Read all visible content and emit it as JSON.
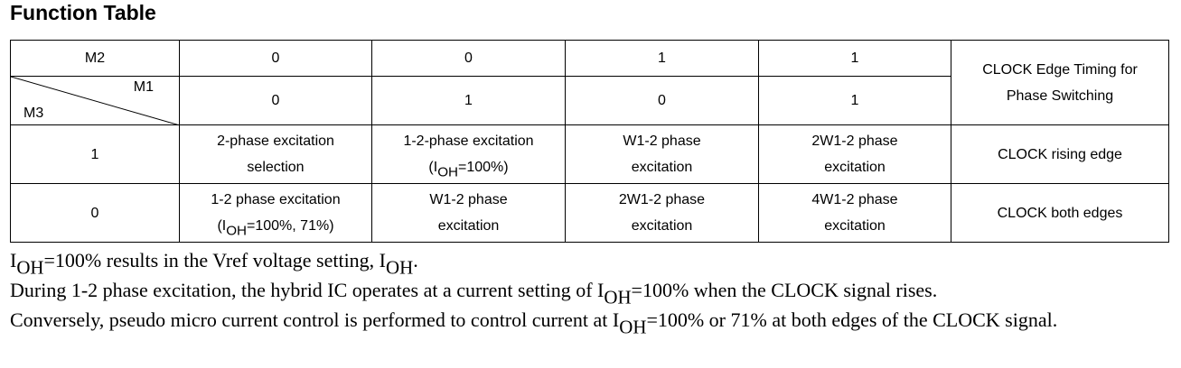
{
  "title": "Function Table",
  "table": {
    "m2_label": "M2",
    "m1_label": "M1",
    "m3_label": "M3",
    "m2_values": [
      "0",
      "0",
      "1",
      "1"
    ],
    "m1_values": [
      "0",
      "1",
      "0",
      "1"
    ],
    "timing_header": [
      "CLOCK Edge Timing for",
      "Phase Switching"
    ],
    "rows": [
      {
        "m3": "1",
        "cells": [
          [
            [
              "2-phase excitation"
            ],
            [
              "selection"
            ]
          ],
          [
            [
              "1-2-phase excitation"
            ],
            [
              "(I",
              "OH",
              "=100%)"
            ]
          ],
          [
            [
              "W1-2 phase"
            ],
            [
              "excitation"
            ]
          ],
          [
            [
              "2W1-2 phase"
            ],
            [
              "excitation"
            ]
          ]
        ],
        "timing": "CLOCK rising edge"
      },
      {
        "m3": "0",
        "cells": [
          [
            [
              "1-2 phase excitation"
            ],
            [
              "(I",
              "OH",
              "=100%, 71%)"
            ]
          ],
          [
            [
              "W1-2 phase"
            ],
            [
              "excitation"
            ]
          ],
          [
            [
              "2W1-2 phase"
            ],
            [
              "excitation"
            ]
          ],
          [
            [
              "4W1-2 phase"
            ],
            [
              "excitation"
            ]
          ]
        ],
        "timing": "CLOCK both edges"
      }
    ]
  },
  "notes": [
    [
      "I",
      "OH",
      "=100% results in the Vref voltage setting, I",
      "OH",
      "."
    ],
    [
      "During 1-2 phase excitation, the hybrid IC operates at a current setting of I",
      "OH",
      "=100% when the CLOCK signal rises."
    ],
    [
      "Conversely, pseudo micro current control is performed to control current at I",
      "OH",
      "=100% or 71% at both edges of the CLOCK signal."
    ]
  ]
}
